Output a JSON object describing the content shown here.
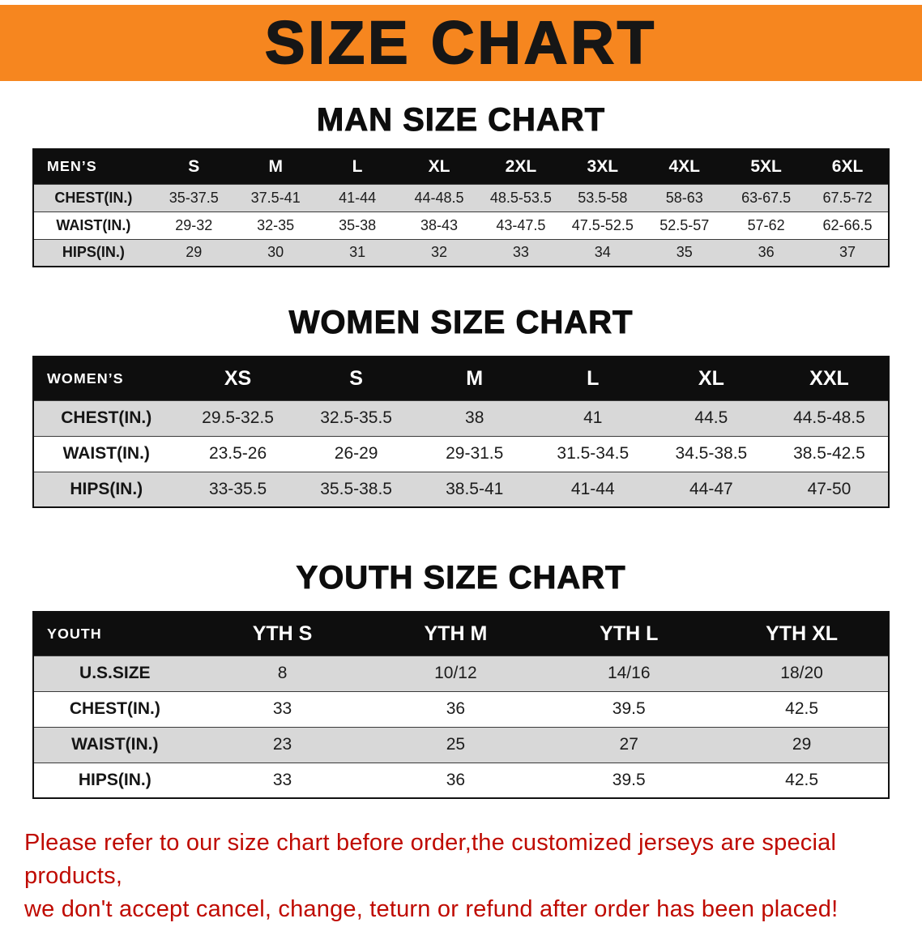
{
  "banner": {
    "title": "SIZE CHART"
  },
  "sections": [
    {
      "heading": "MAN SIZE CHART",
      "table": {
        "header": [
          "MEN’S",
          "S",
          "M",
          "L",
          "XL",
          "2XL",
          "3XL",
          "4XL",
          "5XL",
          "6XL"
        ],
        "rows": [
          [
            "CHEST(IN.)",
            "35-37.5",
            "37.5-41",
            "41-44",
            "44-48.5",
            "48.5-53.5",
            "53.5-58",
            "58-63",
            "63-67.5",
            "67.5-72"
          ],
          [
            "WAIST(IN.)",
            "29-32",
            "32-35",
            "35-38",
            "38-43",
            "43-47.5",
            "47.5-52.5",
            "52.5-57",
            "57-62",
            "62-66.5"
          ],
          [
            "HIPS(IN.)",
            "29",
            "30",
            "31",
            "32",
            "33",
            "34",
            "35",
            "36",
            "37"
          ]
        ]
      }
    },
    {
      "heading": "WOMEN SIZE CHART",
      "table": {
        "header": [
          "WOMEN’S",
          "XS",
          "S",
          "M",
          "L",
          "XL",
          "XXL"
        ],
        "rows": [
          [
            "CHEST(IN.)",
            "29.5-32.5",
            "32.5-35.5",
            "38",
            "41",
            "44.5",
            "44.5-48.5"
          ],
          [
            "WAIST(IN.)",
            "23.5-26",
            "26-29",
            "29-31.5",
            "31.5-34.5",
            "34.5-38.5",
            "38.5-42.5"
          ],
          [
            "HIPS(IN.)",
            "33-35.5",
            "35.5-38.5",
            "38.5-41",
            "41-44",
            "44-47",
            "47-50"
          ]
        ]
      }
    },
    {
      "heading": "YOUTH SIZE CHART",
      "table": {
        "header": [
          "YOUTH",
          "YTH S",
          "YTH M",
          "YTH L",
          "YTH XL"
        ],
        "rows": [
          [
            "U.S.SIZE",
            "8",
            "10/12",
            "14/16",
            "18/20"
          ],
          [
            "CHEST(IN.)",
            "33",
            "36",
            "39.5",
            "42.5"
          ],
          [
            "WAIST(IN.)",
            "23",
            "25",
            "27",
            "29"
          ],
          [
            "HIPS(IN.)",
            "33",
            "36",
            "39.5",
            "42.5"
          ]
        ]
      }
    }
  ],
  "disclaimer": {
    "line1": "Please refer to our size chart before order,the customized jerseys are special products,",
    "line2": "we don't accept cancel, change, teturn or refund after order has been placed!"
  },
  "colors": {
    "banner_bg": "#f6861f",
    "header_bg": "#0e0e0e",
    "stripe_row": "#d8d8d8",
    "disclaimer_red": "#bf0a00"
  }
}
